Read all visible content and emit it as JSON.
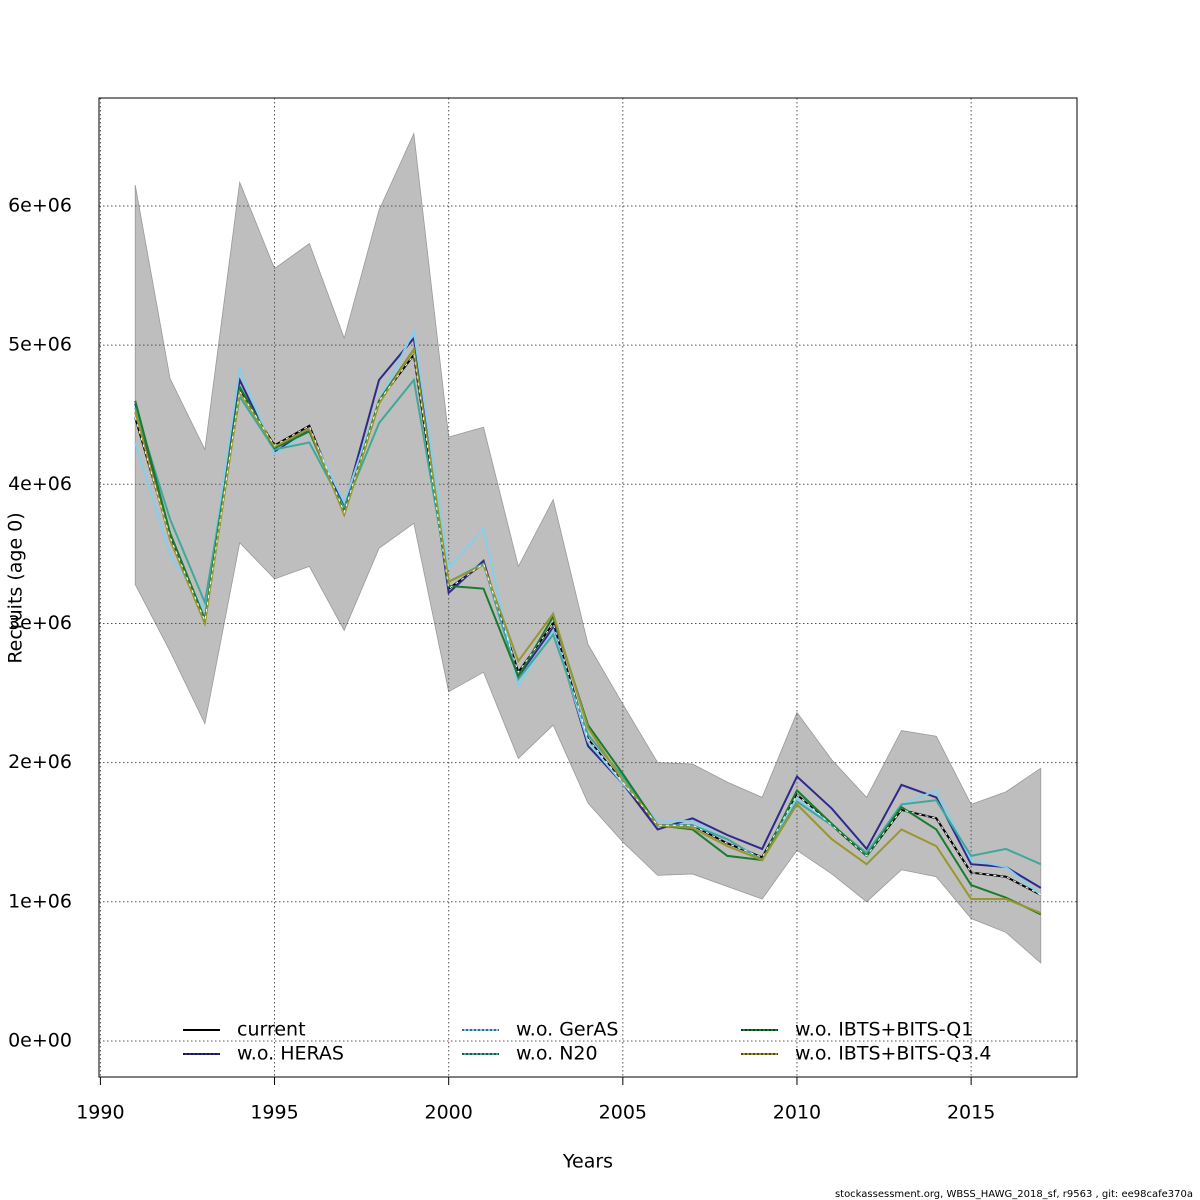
{
  "chart_data": {
    "type": "line",
    "x_label": "Years",
    "y_label": "Recruits (age 0)",
    "footer": "stockassessment.org, WBSS_HAWG_2018_sf, r9563 , git: ee98cafe370a",
    "x": [
      1991,
      1992,
      1993,
      1994,
      1995,
      1996,
      1997,
      1998,
      1999,
      2000,
      2001,
      2002,
      2003,
      2004,
      2005,
      2006,
      2007,
      2008,
      2009,
      2010,
      2011,
      2012,
      2013,
      2014,
      2015,
      2016,
      2017
    ],
    "xlim": [
      1989.96,
      2018.04
    ],
    "xticks": [
      1990,
      1995,
      2000,
      2005,
      2010,
      2015
    ],
    "ylim": [
      -259000,
      6776000
    ],
    "yticks": [
      {
        "value": 0,
        "label": "0e+00"
      },
      {
        "value": 1000000,
        "label": "1e+06"
      },
      {
        "value": 2000000,
        "label": "2e+06"
      },
      {
        "value": 3000000,
        "label": "3e+06"
      },
      {
        "value": 4000000,
        "label": "4e+06"
      },
      {
        "value": 5000000,
        "label": "5e+06"
      },
      {
        "value": 6000000,
        "label": "6e+06"
      }
    ],
    "grid": true,
    "band": {
      "color": "#bebebe",
      "upper": [
        6150000,
        4760000,
        4250000,
        6170000,
        5550000,
        5730000,
        5050000,
        5970000,
        6520000,
        4340000,
        4410000,
        3410000,
        3890000,
        2850000,
        2420000,
        2000000,
        1990000,
        1860000,
        1750000,
        2360000,
        2020000,
        1750000,
        2230000,
        2190000,
        1700000,
        1790000,
        1960000
      ],
      "lower": [
        3280000,
        2800000,
        2280000,
        3580000,
        3320000,
        3410000,
        2950000,
        3540000,
        3720000,
        2510000,
        2650000,
        2030000,
        2270000,
        1710000,
        1430000,
        1190000,
        1200000,
        1110000,
        1020000,
        1370000,
        1200000,
        1000000,
        1230000,
        1180000,
        880000,
        780000,
        560000
      ]
    },
    "series": [
      {
        "name": "current",
        "color": "#000000",
        "values": [
          4480000,
          3620000,
          3020000,
          4670000,
          4280000,
          4420000,
          3800000,
          4600000,
          4930000,
          3250000,
          3430000,
          2650000,
          3000000,
          2170000,
          1860000,
          1550000,
          1550000,
          1420000,
          1320000,
          1770000,
          1550000,
          1330000,
          1660000,
          1600000,
          1210000,
          1180000,
          1050000
        ]
      },
      {
        "name": "w.o. HERAS",
        "color": "#2e2a8c",
        "values": [
          4580000,
          3620000,
          3020000,
          4750000,
          4230000,
          4400000,
          3840000,
          4750000,
          5050000,
          3220000,
          3450000,
          2620000,
          2970000,
          2120000,
          1850000,
          1520000,
          1600000,
          1480000,
          1380000,
          1900000,
          1670000,
          1380000,
          1840000,
          1750000,
          1270000,
          1250000,
          1100000
        ]
      },
      {
        "name": "w.o. GerAS",
        "color": "#87ceeb",
        "values": [
          4300000,
          3500000,
          3100000,
          4830000,
          4220000,
          4380000,
          3870000,
          4600000,
          5100000,
          3400000,
          3680000,
          2550000,
          2950000,
          2150000,
          1850000,
          1580000,
          1580000,
          1450000,
          1300000,
          1750000,
          1550000,
          1350000,
          1700000,
          1800000,
          1300000,
          1250000,
          1050000
        ]
      },
      {
        "name": "w.o. N20",
        "color": "#3fa89a",
        "values": [
          4550000,
          3750000,
          3150000,
          4630000,
          4250000,
          4300000,
          3830000,
          4440000,
          4750000,
          3300000,
          3430000,
          2600000,
          2920000,
          2200000,
          1900000,
          1550000,
          1550000,
          1450000,
          1300000,
          1720000,
          1550000,
          1350000,
          1700000,
          1730000,
          1330000,
          1380000,
          1270000
        ]
      },
      {
        "name": "w.o. IBTS+BITS-Q1",
        "color": "#1a7a2e",
        "values": [
          4600000,
          3650000,
          3030000,
          4700000,
          4260000,
          4380000,
          3800000,
          4600000,
          4970000,
          3270000,
          3250000,
          2620000,
          3050000,
          2270000,
          1920000,
          1550000,
          1520000,
          1330000,
          1300000,
          1800000,
          1560000,
          1330000,
          1680000,
          1520000,
          1120000,
          1030000,
          910000
        ]
      },
      {
        "name": "w.o. IBTS+BITS-Q3.4",
        "color": "#9a962e",
        "values": [
          4520000,
          3600000,
          3000000,
          4660000,
          4270000,
          4400000,
          3780000,
          4580000,
          4970000,
          3300000,
          3420000,
          2730000,
          3070000,
          2250000,
          1870000,
          1550000,
          1530000,
          1400000,
          1300000,
          1700000,
          1450000,
          1270000,
          1520000,
          1400000,
          1020000,
          1020000,
          920000
        ]
      }
    ]
  }
}
